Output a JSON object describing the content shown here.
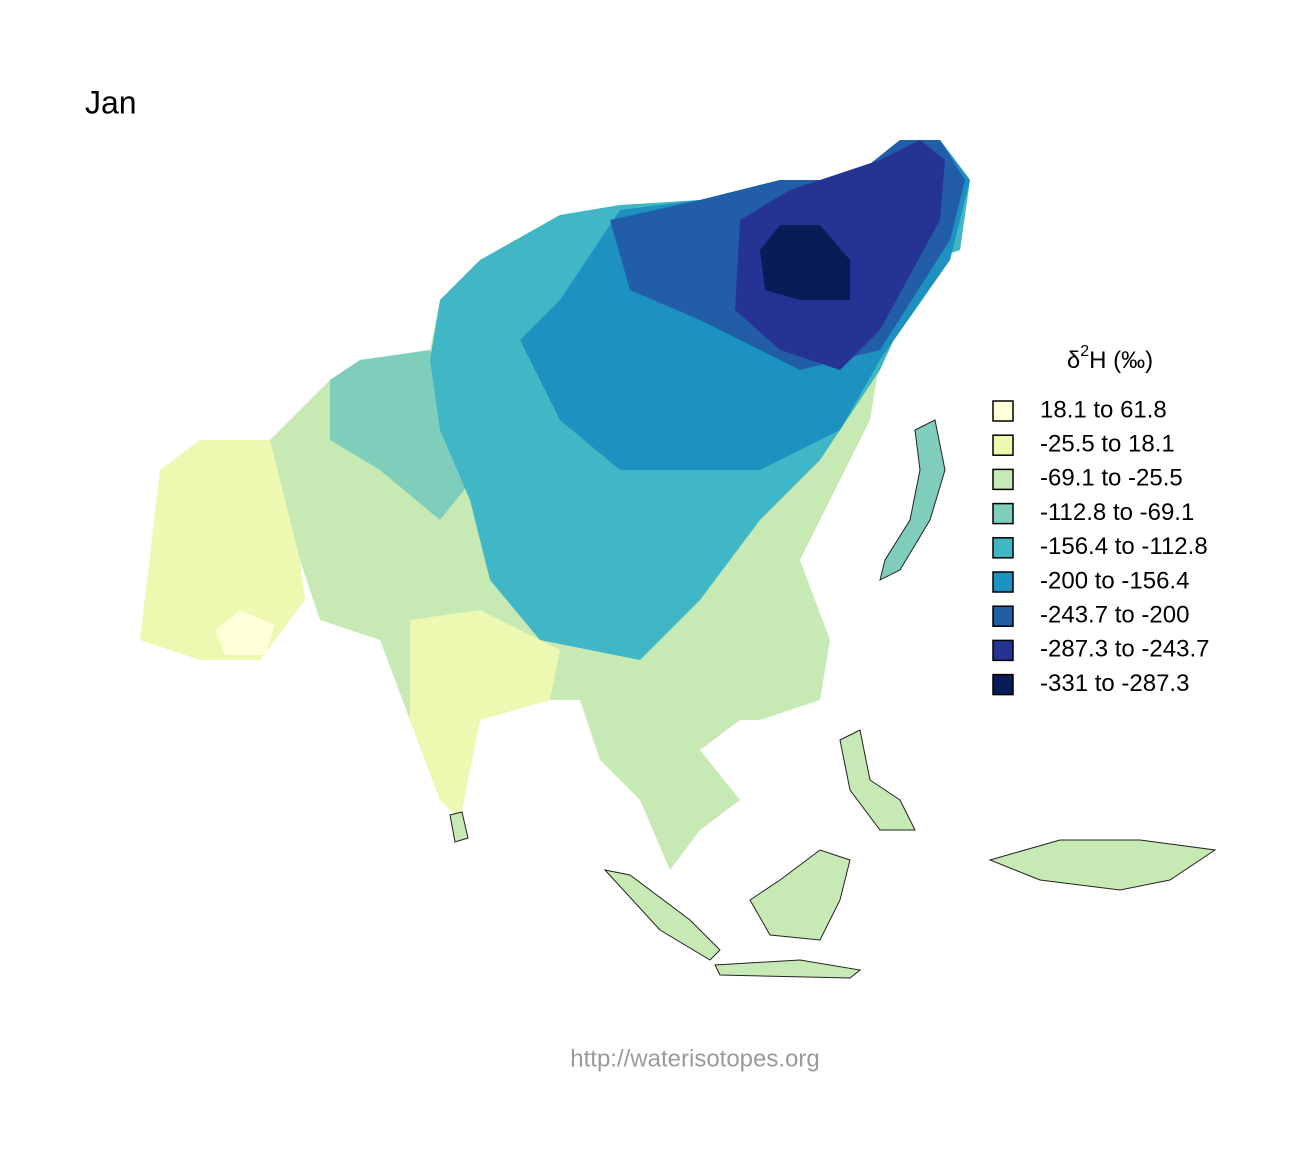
{
  "title": "Jan",
  "legend": {
    "title": {
      "symbol": "δ",
      "superscript": "2",
      "rest": "H (‰)"
    },
    "entries": [
      {
        "label": "18.1 to 61.8",
        "color": "#ffffd9"
      },
      {
        "label": "-25.5 to 18.1",
        "color": "#edf8b1"
      },
      {
        "label": "-69.1 to -25.5",
        "color": "#c7e9b4"
      },
      {
        "label": "-112.8 to -69.1",
        "color": "#7fcdbb"
      },
      {
        "label": "-156.4 to -112.8",
        "color": "#41b6c4"
      },
      {
        "label": "-200 to -156.4",
        "color": "#1d91c0"
      },
      {
        "label": "-243.7 to -200",
        "color": "#225ea8"
      },
      {
        "label": "-287.3 to -243.7",
        "color": "#253494"
      },
      {
        "label": "-331 to -287.3",
        "color": "#081d58"
      }
    ]
  },
  "footer": "http://waterisotopes.org"
}
